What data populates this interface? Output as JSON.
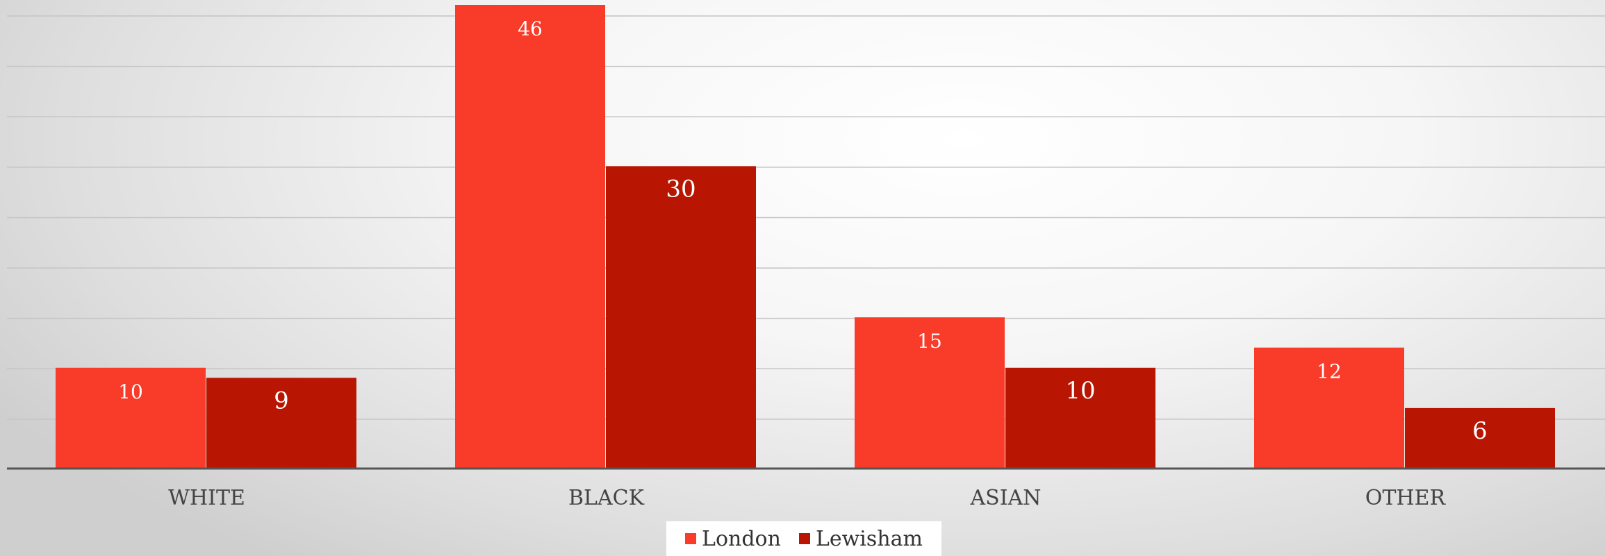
{
  "chart_data": {
    "type": "bar",
    "title": "",
    "xlabel": "",
    "ylabel": "",
    "categories": [
      "WHITE",
      "BLACK",
      "ASIAN",
      "OTHER"
    ],
    "series": [
      {
        "name": "London",
        "values": [
          10,
          46,
          15,
          12
        ],
        "color": "#f93b29"
      },
      {
        "name": "Lewisham",
        "values": [
          9,
          30,
          10,
          6
        ],
        "color": "#b81602"
      }
    ],
    "ylim": [
      0,
      46
    ],
    "grid": true,
    "data_labels": true,
    "legend_position": "bottom"
  }
}
